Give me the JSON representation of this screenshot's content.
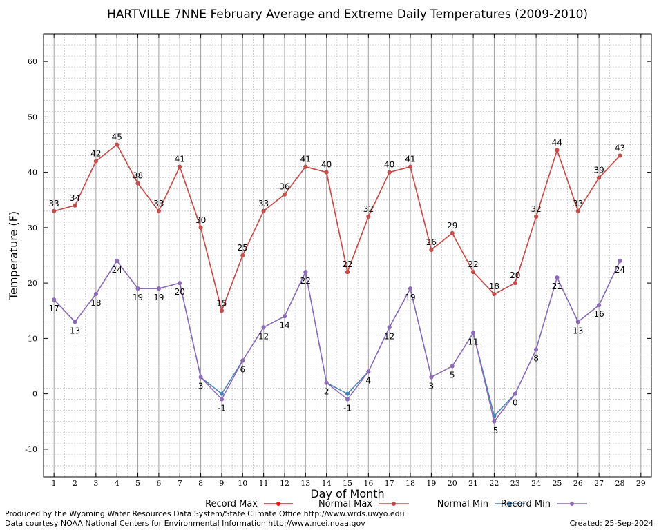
{
  "chart_data": {
    "type": "line",
    "title": "HARTVILLE 7NNE February Average and Extreme Daily Temperatures (2009-2010)",
    "xlabel": "Day of Month",
    "ylabel": "Temperature (F)",
    "xlim": [
      0.5,
      29.5
    ],
    "ylim": [
      -15,
      65
    ],
    "x_ticks": [
      "1",
      "2",
      "3",
      "4",
      "5",
      "6",
      "7",
      "8",
      "9",
      "10",
      "11",
      "12",
      "13",
      "14",
      "15",
      "16",
      "17",
      "18",
      "19",
      "20",
      "21",
      "22",
      "23",
      "24",
      "25",
      "26",
      "27",
      "28",
      "29"
    ],
    "y_ticks": [
      -10,
      0,
      10,
      20,
      30,
      40,
      50,
      60
    ],
    "x": [
      1,
      2,
      3,
      4,
      5,
      6,
      7,
      8,
      9,
      10,
      11,
      12,
      13,
      14,
      15,
      16,
      17,
      18,
      19,
      20,
      21,
      22,
      23,
      24,
      25,
      26,
      27,
      28
    ],
    "grid": true,
    "legend_position": "bottom",
    "series": [
      {
        "name": "Record Max",
        "color": "#e41a1c",
        "values": [
          33,
          34,
          42,
          45,
          38,
          33,
          41,
          30,
          15,
          25,
          33,
          36,
          41,
          40,
          22,
          32,
          40,
          41,
          26,
          29,
          22,
          18,
          20,
          32,
          44,
          33,
          39,
          43
        ]
      },
      {
        "name": "Normal Max",
        "color": "#c0504d",
        "values": [
          33,
          34,
          42,
          45,
          38,
          33,
          41,
          30,
          15,
          25,
          33,
          36,
          41,
          40,
          22,
          32,
          40,
          41,
          26,
          29,
          22,
          18,
          20,
          32,
          44,
          33,
          39,
          43
        ]
      },
      {
        "name": "Normal Min",
        "color": "#4682b4",
        "values": [
          17,
          13,
          18,
          24,
          19,
          19,
          20,
          3,
          0,
          6,
          12,
          14,
          22,
          2,
          0,
          4,
          12,
          19,
          3,
          5,
          11,
          -4,
          0,
          8,
          21,
          13,
          16,
          24
        ]
      },
      {
        "name": "Record Min",
        "color": "#8e6bb4",
        "values": [
          17,
          13,
          18,
          24,
          19,
          19,
          20,
          3,
          -1,
          6,
          12,
          14,
          22,
          2,
          -1,
          4,
          12,
          19,
          3,
          5,
          11,
          -5,
          0,
          8,
          21,
          13,
          16,
          24
        ]
      }
    ],
    "data_labels": {
      "max": [
        "33",
        "34",
        "42",
        "45",
        "38",
        "33",
        "41",
        "30",
        "15",
        "25",
        "33",
        "36",
        "41",
        "40",
        "22",
        "32",
        "40",
        "41",
        "26",
        "29",
        "22",
        "18",
        "20",
        "32",
        "44",
        "33",
        "39",
        "43"
      ],
      "min": [
        "17",
        "13",
        "18",
        "24",
        "19",
        "19",
        "20",
        "3",
        "-1",
        "6",
        "12",
        "14",
        "22",
        "2",
        "-1",
        "4",
        "12",
        "19",
        "3",
        "5",
        "11",
        "-5",
        "0",
        "8",
        "21",
        "13",
        "16",
        "24"
      ]
    }
  },
  "footer": {
    "left_line1": "Produced by the Wyoming Water Resources Data System/State Climate Office http://www.wrds.uwyo.edu",
    "left_line2": "Data courtesy NOAA National Centers for Environmental Information http://www.ncei.noaa.gov",
    "created": "Created:  25-Sep-2024"
  },
  "colors": {
    "grid_major": "#a0a0a0",
    "grid_minor": "#c8c8c8",
    "record_max_marker": "#e41a1c"
  }
}
